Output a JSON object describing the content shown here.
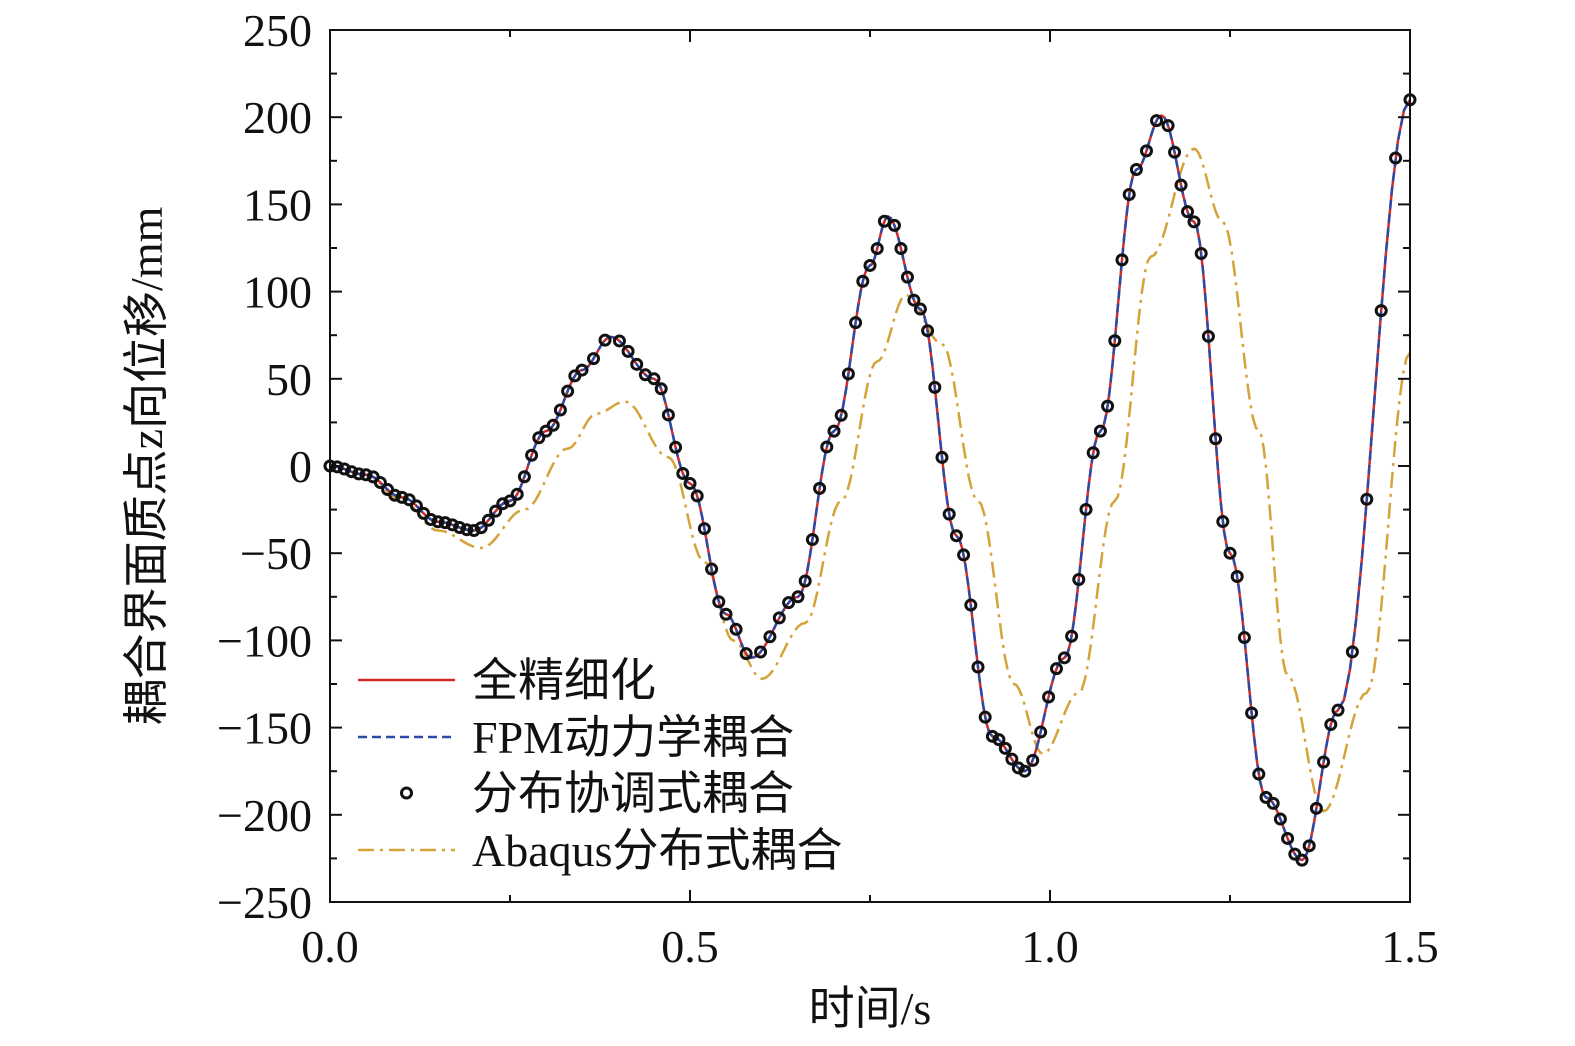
{
  "chart_data": {
    "type": "line",
    "xlabel": "时间/s",
    "ylabel": "耦合界面质点z向位移/mm",
    "xlim": [
      0.0,
      1.5
    ],
    "ylim": [
      -250,
      250
    ],
    "xticks": [
      {
        "value": 0.0,
        "label": "0.0"
      },
      {
        "value": 0.5,
        "label": "0.5"
      },
      {
        "value": 1.0,
        "label": "1.0"
      },
      {
        "value": 1.5,
        "label": "1.5"
      }
    ],
    "yticks": [
      {
        "value": 250,
        "label": "250"
      },
      {
        "value": 200,
        "label": "200"
      },
      {
        "value": 150,
        "label": "150"
      },
      {
        "value": 100,
        "label": "100"
      },
      {
        "value": 50,
        "label": "50"
      },
      {
        "value": 0,
        "label": "0"
      },
      {
        "value": -50,
        "label": "−50"
      },
      {
        "value": -100,
        "label": "−100"
      },
      {
        "value": -150,
        "label": "−150"
      },
      {
        "value": -200,
        "label": "−200"
      },
      {
        "value": -250,
        "label": "−250"
      }
    ],
    "grid": false,
    "legend_position": "bottom-left",
    "series": [
      {
        "name": "全精细化",
        "style": "solid",
        "color": "#d42a2a",
        "x": [
          0.0,
          0.05,
          0.1,
          0.15,
          0.2,
          0.25,
          0.3,
          0.35,
          0.39,
          0.45,
          0.5,
          0.55,
          0.585,
          0.65,
          0.7,
          0.75,
          0.775,
          0.82,
          0.87,
          0.92,
          0.965,
          1.02,
          1.07,
          1.12,
          1.155,
          1.2,
          1.25,
          1.3,
          1.35,
          1.4,
          1.5
        ],
        "y": [
          0,
          -5,
          -18,
          -32,
          -37,
          -20,
          20,
          55,
          74,
          50,
          -10,
          -85,
          -110,
          -75,
          20,
          115,
          143,
          90,
          -40,
          -155,
          -175,
          -110,
          20,
          170,
          201,
          140,
          -50,
          -190,
          -226,
          -140,
          210
        ]
      },
      {
        "name": "FPM动力学耦合",
        "style": "dashed",
        "color": "#2b4aa8",
        "x": [
          0.0,
          0.05,
          0.1,
          0.15,
          0.2,
          0.25,
          0.3,
          0.35,
          0.39,
          0.45,
          0.5,
          0.55,
          0.585,
          0.65,
          0.7,
          0.75,
          0.775,
          0.82,
          0.87,
          0.92,
          0.965,
          1.02,
          1.07,
          1.12,
          1.155,
          1.2,
          1.25,
          1.3,
          1.35,
          1.4,
          1.5
        ],
        "y": [
          0,
          -5,
          -18,
          -32,
          -37,
          -20,
          20,
          55,
          74,
          50,
          -10,
          -85,
          -110,
          -75,
          20,
          115,
          143,
          90,
          -40,
          -155,
          -175,
          -110,
          20,
          170,
          201,
          140,
          -50,
          -190,
          -226,
          -140,
          210
        ]
      },
      {
        "name": "分布协调式耦合",
        "style": "markers",
        "color": "#111111",
        "x": [
          0.0,
          0.05,
          0.1,
          0.15,
          0.2,
          0.25,
          0.3,
          0.35,
          0.39,
          0.45,
          0.5,
          0.55,
          0.585,
          0.65,
          0.7,
          0.75,
          0.775,
          0.82,
          0.87,
          0.92,
          0.965,
          1.02,
          1.07,
          1.12,
          1.155,
          1.2,
          1.25,
          1.3,
          1.35,
          1.4,
          1.5
        ],
        "y": [
          0,
          -5,
          -18,
          -32,
          -37,
          -20,
          20,
          55,
          74,
          50,
          -10,
          -85,
          -110,
          -75,
          20,
          115,
          143,
          90,
          -40,
          -155,
          -175,
          -110,
          20,
          170,
          201,
          140,
          -50,
          -190,
          -226,
          -140,
          210
        ]
      },
      {
        "name": "Abaqus分布式耦合",
        "style": "dashdot",
        "color": "#d4a33a",
        "x": [
          0.0,
          0.05,
          0.1,
          0.15,
          0.21,
          0.27,
          0.33,
          0.37,
          0.41,
          0.47,
          0.52,
          0.56,
          0.6,
          0.66,
          0.71,
          0.76,
          0.8,
          0.85,
          0.9,
          0.95,
          0.99,
          1.04,
          1.09,
          1.14,
          1.2,
          1.24,
          1.29,
          1.33,
          1.38,
          1.44,
          1.5
        ],
        "y": [
          0,
          -5,
          -20,
          -37,
          -47,
          -25,
          10,
          30,
          37,
          5,
          -55,
          -100,
          -122,
          -90,
          -20,
          60,
          98,
          70,
          -20,
          -125,
          -165,
          -130,
          -20,
          120,
          182,
          140,
          20,
          -120,
          -198,
          -130,
          65
        ]
      }
    ]
  }
}
